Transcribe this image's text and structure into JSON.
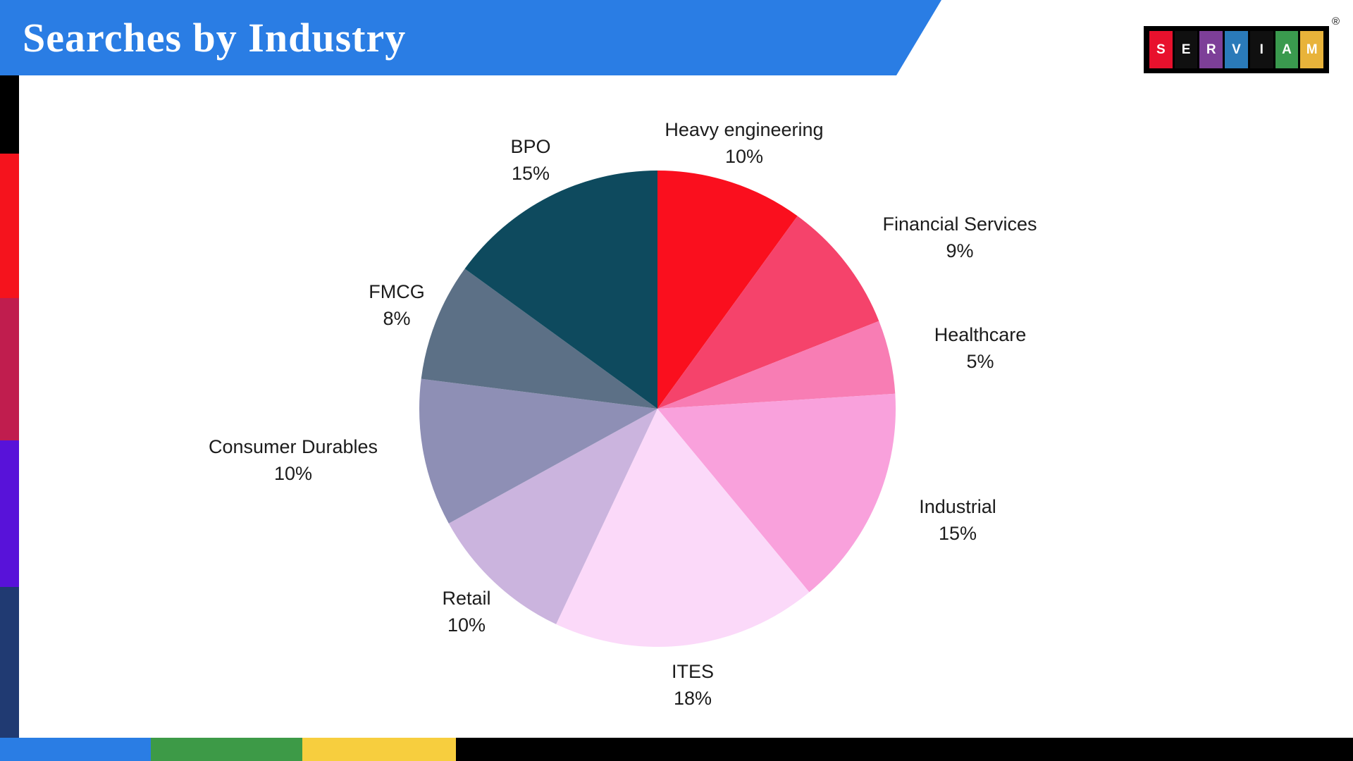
{
  "header": {
    "title": "Searches by Industry"
  },
  "logo": {
    "letters": [
      "S",
      "E",
      "R",
      "V",
      "I",
      "A",
      "M"
    ],
    "tile_colors": [
      "#e8112d",
      "#101010",
      "#7d3f98",
      "#2a7ab9",
      "#101010",
      "#3a9a4e",
      "#e8b33a"
    ],
    "registered": "®"
  },
  "chart_data": {
    "type": "pie",
    "title": "Searches by Industry",
    "categories": [
      "Heavy engineering",
      "Financial Services",
      "Healthcare",
      "Industrial",
      "ITES",
      "Retail",
      "Consumer Durables",
      "FMCG",
      "BPO"
    ],
    "values": [
      10,
      9,
      5,
      15,
      18,
      10,
      10,
      8,
      15
    ],
    "colors": [
      "#fa0f1e",
      "#f5436b",
      "#f87db4",
      "#f9a1dc",
      "#fbd9f9",
      "#cbb4de",
      "#8e8fb5",
      "#5c7086",
      "#0e4a5e"
    ],
    "start_angle_deg": 0,
    "direction": "clockwise",
    "label_format": "{name} {value}%",
    "legend": "none"
  },
  "decor": {
    "header_color": "#2a7de4",
    "left_stripe_colors": [
      "#000000",
      "#f5131d",
      "#c01d4e",
      "#5812d9",
      "#203a72"
    ],
    "bottom_stripe_colors": [
      "#2a7de4",
      "#3d9a47",
      "#f7ce3e",
      "#000000"
    ]
  }
}
